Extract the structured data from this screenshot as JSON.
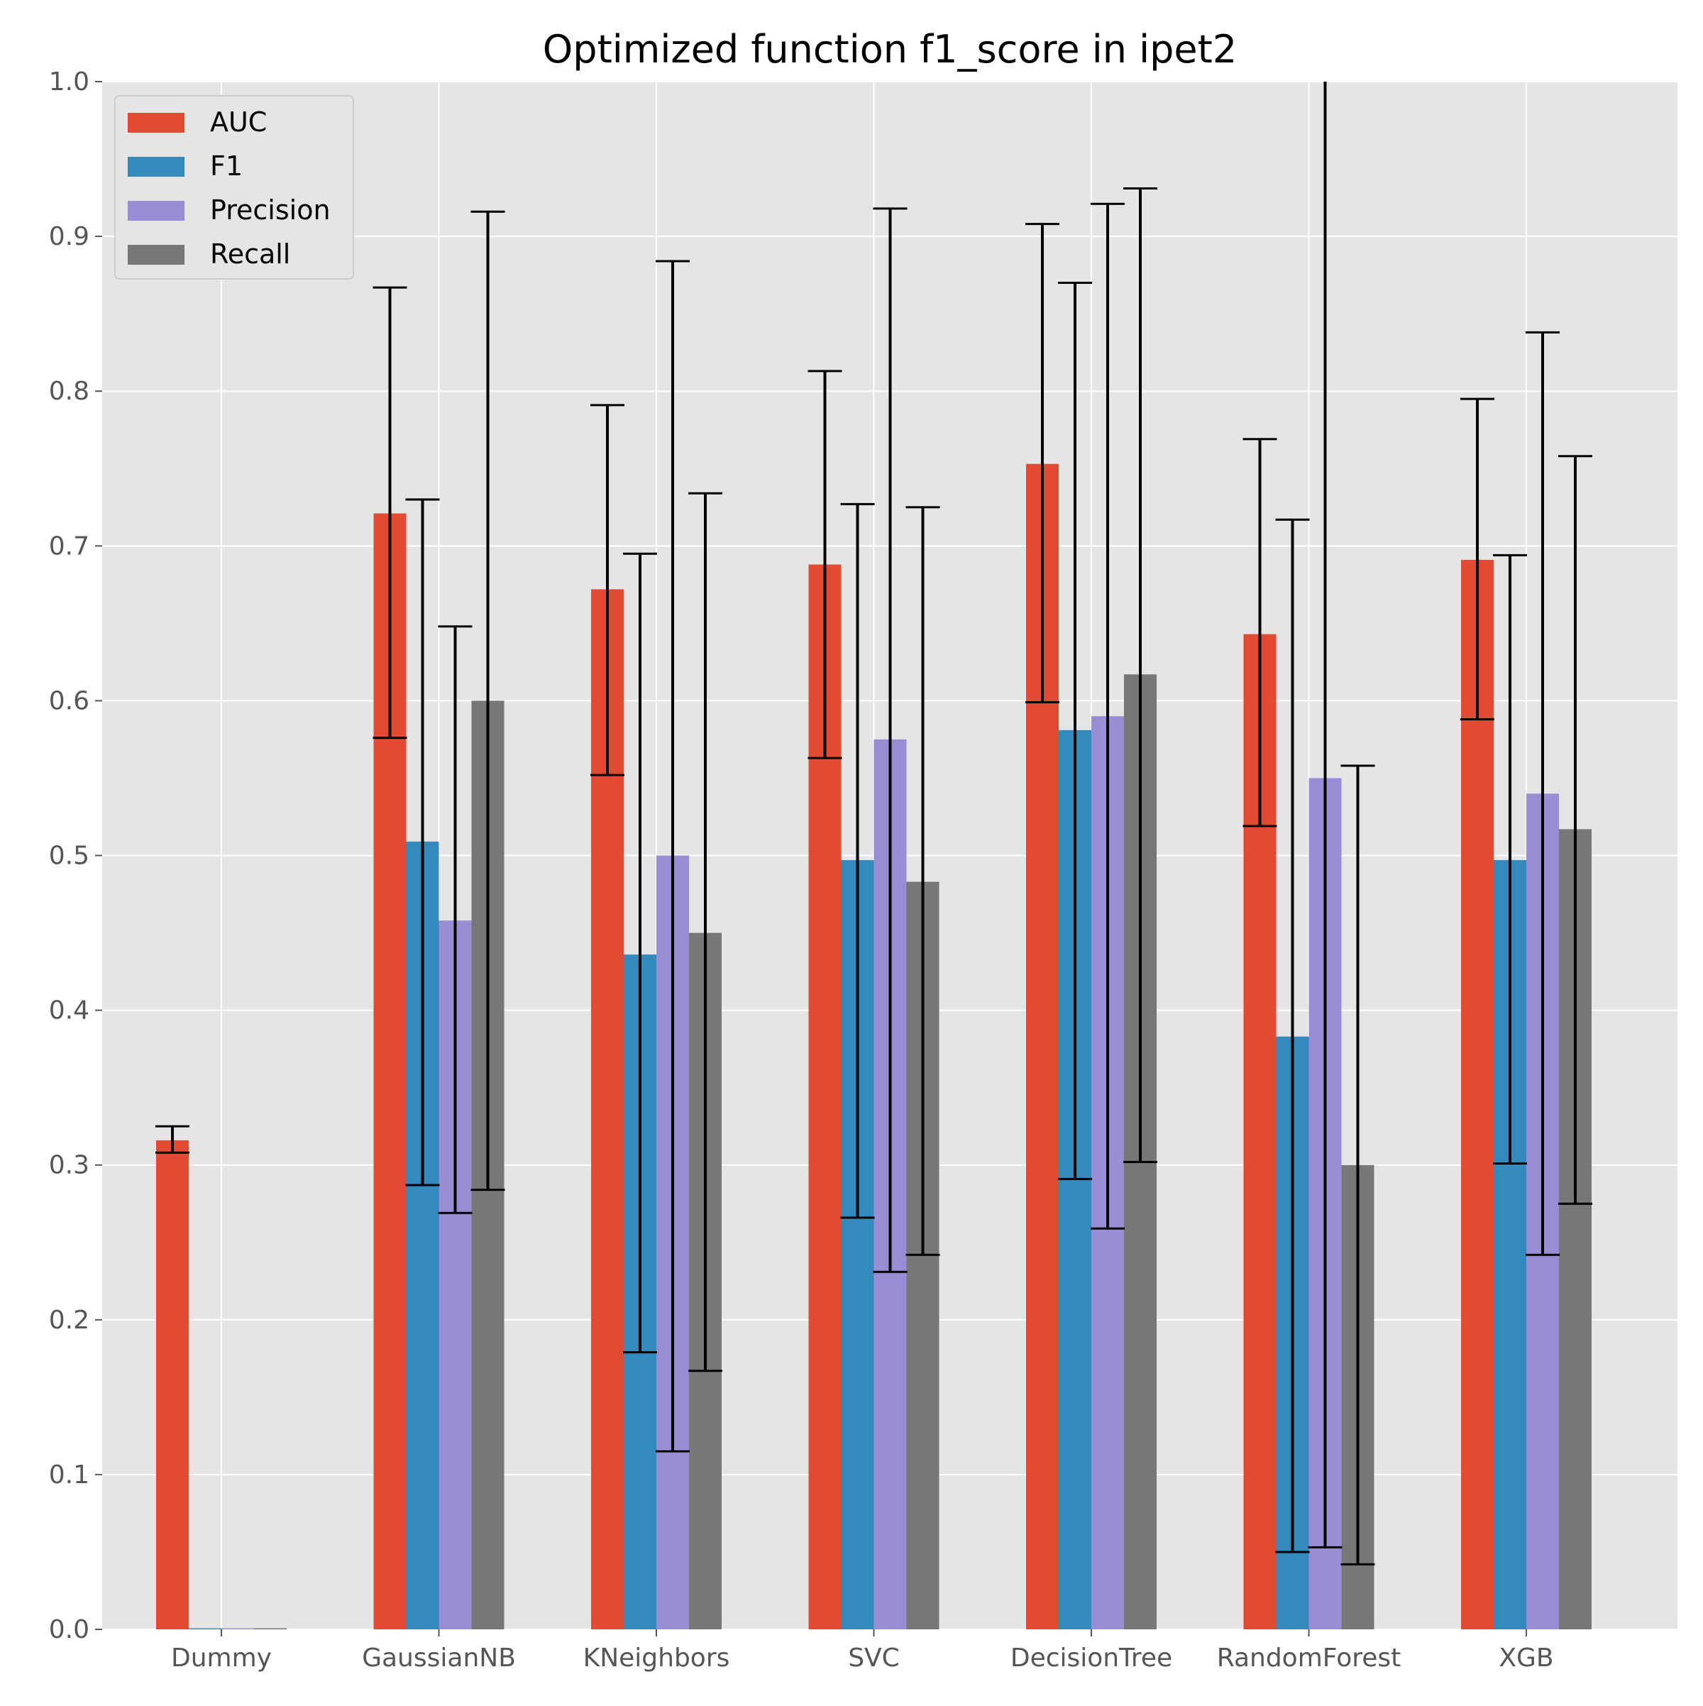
{
  "chart_data": {
    "type": "bar",
    "title": "Optimized function f1_score in ipet2",
    "xlabel": "",
    "ylabel": "",
    "ylim": [
      0,
      1.0
    ],
    "yticks": [
      "0.0",
      "0.1",
      "0.2",
      "0.3",
      "0.4",
      "0.5",
      "0.6",
      "0.7",
      "0.8",
      "0.9",
      "1.0"
    ],
    "grid": true,
    "legend_position": "top-left",
    "categories": [
      "Dummy",
      "GaussianNB",
      "KNeighbors",
      "SVC",
      "DecisionTree",
      "RandomForest",
      "XGB"
    ],
    "series": [
      {
        "name": "AUC",
        "color": "#E24A33",
        "values": [
          0.316,
          0.721,
          0.672,
          0.688,
          0.753,
          0.643,
          0.691
        ],
        "error_low": [
          0.308,
          0.576,
          0.552,
          0.563,
          0.599,
          0.519,
          0.588
        ],
        "error_high": [
          0.325,
          0.867,
          0.791,
          0.813,
          0.908,
          0.769,
          0.795
        ]
      },
      {
        "name": "F1",
        "color": "#348ABD",
        "values": [
          0.0,
          0.509,
          0.436,
          0.497,
          0.581,
          0.383,
          0.497
        ],
        "error_low": [
          null,
          0.287,
          0.179,
          0.266,
          0.291,
          0.05,
          0.301
        ],
        "error_high": [
          null,
          0.73,
          0.695,
          0.727,
          0.87,
          0.717,
          0.694
        ]
      },
      {
        "name": "Precision",
        "color": "#988ED5",
        "values": [
          0.0,
          0.458,
          0.5,
          0.575,
          0.59,
          0.55,
          0.54
        ],
        "error_low": [
          null,
          0.269,
          0.115,
          0.231,
          0.259,
          0.053,
          0.242
        ],
        "error_high": [
          null,
          0.648,
          0.884,
          0.918,
          0.921,
          1.05,
          0.838
        ]
      },
      {
        "name": "Recall",
        "color": "#777777",
        "values": [
          0.0,
          0.6,
          0.45,
          0.483,
          0.617,
          0.3,
          0.517
        ],
        "error_low": [
          null,
          0.284,
          0.167,
          0.242,
          0.302,
          0.042,
          0.275
        ],
        "error_high": [
          null,
          0.916,
          0.734,
          0.725,
          0.931,
          0.558,
          0.758
        ]
      }
    ]
  }
}
